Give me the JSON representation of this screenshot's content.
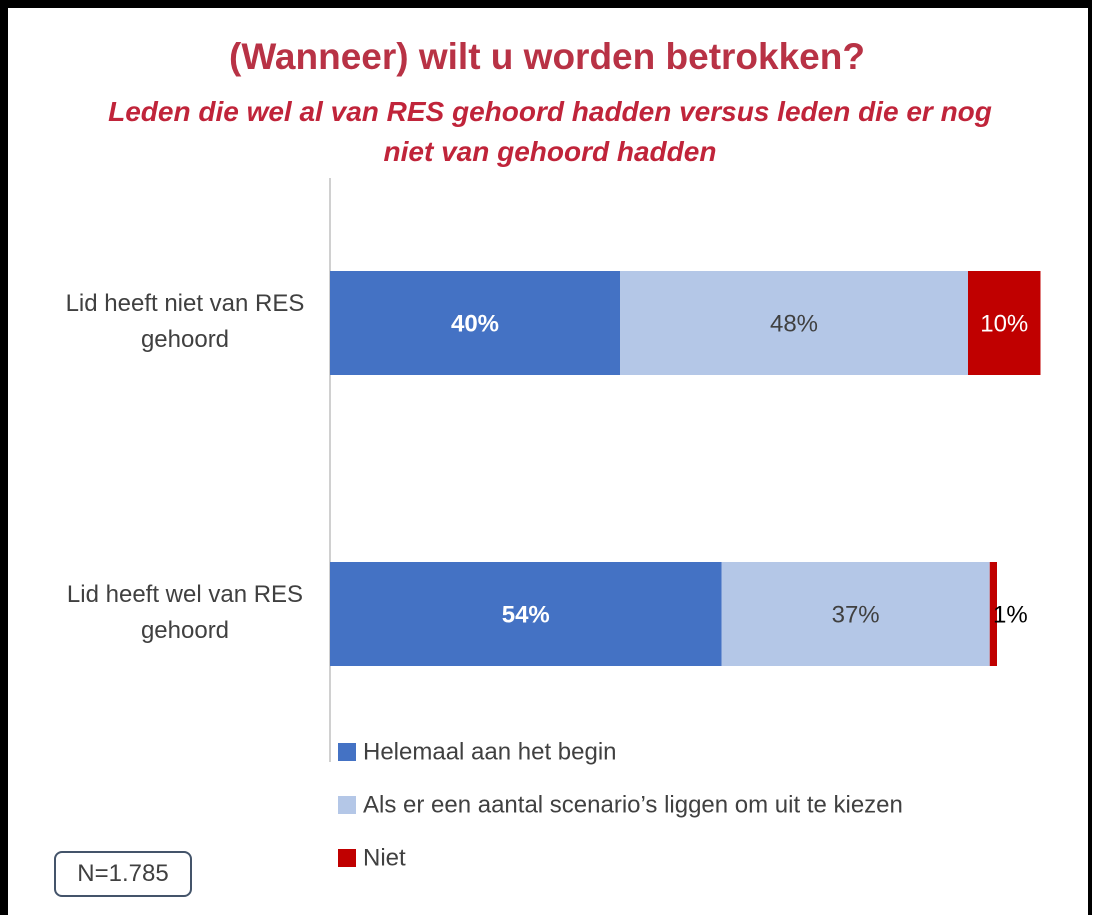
{
  "chart_data": {
    "type": "bar",
    "orientation": "horizontal",
    "stacked": true,
    "title": "(Wanneer) wilt u worden betrokken?",
    "subtitle": "Leden die wel al van RES gehoord hadden versus leden die er nog niet van gehoord hadden",
    "categories": [
      "Lid heeft niet van RES gehoord",
      "Lid heeft wel van RES gehoord"
    ],
    "xlim": [
      0,
      100
    ],
    "series": [
      {
        "name": "Helemaal aan het begin",
        "color": "#4472c4",
        "values": [
          40,
          54
        ],
        "value_labels": [
          "40%",
          "54%"
        ]
      },
      {
        "name": "Als er een aantal scenario’s liggen om uit te kiezen",
        "color": "#b4c7e7",
        "values": [
          48,
          37
        ],
        "value_labels": [
          "48%",
          "37%"
        ]
      },
      {
        "name": "Niet",
        "color": "#c00000",
        "values": [
          10,
          1
        ],
        "value_labels": [
          "10%",
          "1%"
        ]
      }
    ],
    "annotation": "N=1.785"
  }
}
